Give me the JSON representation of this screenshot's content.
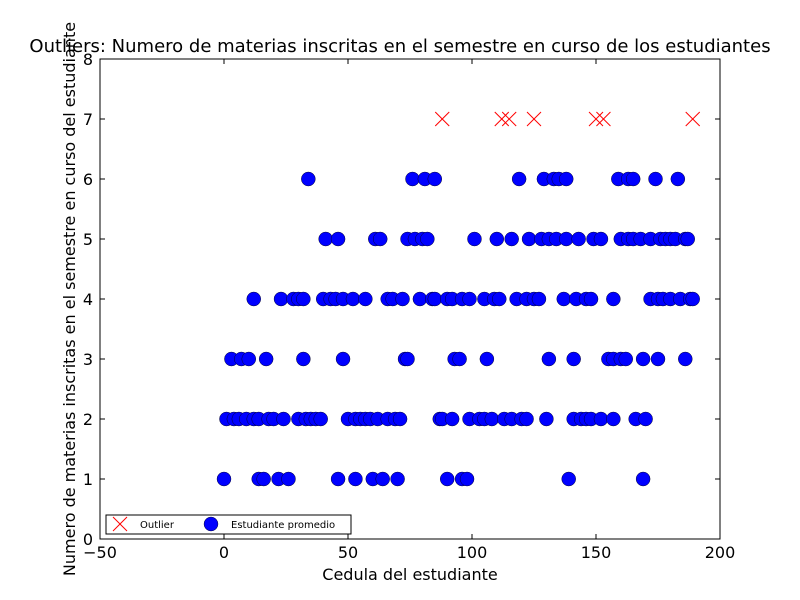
{
  "chart_data": {
    "type": "scatter",
    "title": "Outliers: Numero de materias inscritas en el semestre en curso de los estudiantes",
    "xlabel": "Cedula del estudiante",
    "ylabel": "Numero de materias inscritas en el semestre en curso del estudiante",
    "xlim": [
      -50,
      200
    ],
    "ylim": [
      0,
      8
    ],
    "xticks": [
      -50,
      0,
      50,
      100,
      150,
      200
    ],
    "yticks": [
      0,
      1,
      2,
      3,
      4,
      5,
      6,
      7,
      8
    ],
    "xtick_labels": [
      "−50",
      "0",
      "50",
      "100",
      "150",
      "200"
    ],
    "ytick_labels": [
      "0",
      "1",
      "2",
      "3",
      "4",
      "5",
      "6",
      "7",
      "8"
    ],
    "grid": false,
    "legend": {
      "position": "bottom-left",
      "columns": 2
    },
    "series": [
      {
        "name": "Outlier",
        "marker": "x",
        "color": "#ff0000",
        "points": [
          [
            88,
            7
          ],
          [
            112,
            7
          ],
          [
            115,
            7
          ],
          [
            125,
            7
          ],
          [
            150,
            7
          ],
          [
            153,
            7
          ],
          [
            189,
            7
          ]
        ]
      },
      {
        "name": "Estudiante promedio",
        "marker": "circle",
        "color": "#0000ff",
        "points": [
          [
            0,
            1
          ],
          [
            14,
            1
          ],
          [
            16,
            1
          ],
          [
            22,
            1
          ],
          [
            26,
            1
          ],
          [
            46,
            1
          ],
          [
            53,
            1
          ],
          [
            60,
            1
          ],
          [
            64,
            1
          ],
          [
            70,
            1
          ],
          [
            90,
            1
          ],
          [
            96,
            1
          ],
          [
            98,
            1
          ],
          [
            139,
            1
          ],
          [
            169,
            1
          ],
          [
            1,
            2
          ],
          [
            4,
            2
          ],
          [
            6,
            2
          ],
          [
            9,
            2
          ],
          [
            12,
            2
          ],
          [
            14,
            2
          ],
          [
            18,
            2
          ],
          [
            20,
            2
          ],
          [
            24,
            2
          ],
          [
            30,
            2
          ],
          [
            33,
            2
          ],
          [
            35,
            2
          ],
          [
            37,
            2
          ],
          [
            39,
            2
          ],
          [
            50,
            2
          ],
          [
            53,
            2
          ],
          [
            55,
            2
          ],
          [
            57,
            2
          ],
          [
            59,
            2
          ],
          [
            62,
            2
          ],
          [
            66,
            2
          ],
          [
            69,
            2
          ],
          [
            71,
            2
          ],
          [
            87,
            2
          ],
          [
            88,
            2
          ],
          [
            92,
            2
          ],
          [
            99,
            2
          ],
          [
            103,
            2
          ],
          [
            105,
            2
          ],
          [
            108,
            2
          ],
          [
            113,
            2
          ],
          [
            116,
            2
          ],
          [
            120,
            2
          ],
          [
            122,
            2
          ],
          [
            130,
            2
          ],
          [
            141,
            2
          ],
          [
            144,
            2
          ],
          [
            146,
            2
          ],
          [
            148,
            2
          ],
          [
            152,
            2
          ],
          [
            157,
            2
          ],
          [
            166,
            2
          ],
          [
            170,
            2
          ],
          [
            3,
            3
          ],
          [
            7,
            3
          ],
          [
            10,
            3
          ],
          [
            17,
            3
          ],
          [
            32,
            3
          ],
          [
            48,
            3
          ],
          [
            73,
            3
          ],
          [
            74,
            3
          ],
          [
            93,
            3
          ],
          [
            95,
            3
          ],
          [
            106,
            3
          ],
          [
            131,
            3
          ],
          [
            141,
            3
          ],
          [
            155,
            3
          ],
          [
            157,
            3
          ],
          [
            160,
            3
          ],
          [
            162,
            3
          ],
          [
            169,
            3
          ],
          [
            175,
            3
          ],
          [
            186,
            3
          ],
          [
            12,
            4
          ],
          [
            23,
            4
          ],
          [
            28,
            4
          ],
          [
            30,
            4
          ],
          [
            32,
            4
          ],
          [
            40,
            4
          ],
          [
            43,
            4
          ],
          [
            45,
            4
          ],
          [
            48,
            4
          ],
          [
            52,
            4
          ],
          [
            57,
            4
          ],
          [
            66,
            4
          ],
          [
            68,
            4
          ],
          [
            72,
            4
          ],
          [
            79,
            4
          ],
          [
            84,
            4
          ],
          [
            85,
            4
          ],
          [
            90,
            4
          ],
          [
            92,
            4
          ],
          [
            96,
            4
          ],
          [
            99,
            4
          ],
          [
            105,
            4
          ],
          [
            109,
            4
          ],
          [
            111,
            4
          ],
          [
            118,
            4
          ],
          [
            122,
            4
          ],
          [
            125,
            4
          ],
          [
            127,
            4
          ],
          [
            137,
            4
          ],
          [
            142,
            4
          ],
          [
            146,
            4
          ],
          [
            148,
            4
          ],
          [
            157,
            4
          ],
          [
            172,
            4
          ],
          [
            175,
            4
          ],
          [
            177,
            4
          ],
          [
            180,
            4
          ],
          [
            184,
            4
          ],
          [
            188,
            4
          ],
          [
            189,
            4
          ],
          [
            41,
            5
          ],
          [
            46,
            5
          ],
          [
            61,
            5
          ],
          [
            63,
            5
          ],
          [
            74,
            5
          ],
          [
            77,
            5
          ],
          [
            80,
            5
          ],
          [
            82,
            5
          ],
          [
            101,
            5
          ],
          [
            110,
            5
          ],
          [
            116,
            5
          ],
          [
            123,
            5
          ],
          [
            128,
            5
          ],
          [
            131,
            5
          ],
          [
            134,
            5
          ],
          [
            138,
            5
          ],
          [
            143,
            5
          ],
          [
            149,
            5
          ],
          [
            152,
            5
          ],
          [
            160,
            5
          ],
          [
            163,
            5
          ],
          [
            165,
            5
          ],
          [
            168,
            5
          ],
          [
            172,
            5
          ],
          [
            176,
            5
          ],
          [
            178,
            5
          ],
          [
            180,
            5
          ],
          [
            182,
            5
          ],
          [
            186,
            5
          ],
          [
            187,
            5
          ],
          [
            34,
            6
          ],
          [
            76,
            6
          ],
          [
            81,
            6
          ],
          [
            85,
            6
          ],
          [
            119,
            6
          ],
          [
            129,
            6
          ],
          [
            133,
            6
          ],
          [
            135,
            6
          ],
          [
            138,
            6
          ],
          [
            159,
            6
          ],
          [
            163,
            6
          ],
          [
            165,
            6
          ],
          [
            174,
            6
          ],
          [
            183,
            6
          ]
        ]
      }
    ]
  }
}
